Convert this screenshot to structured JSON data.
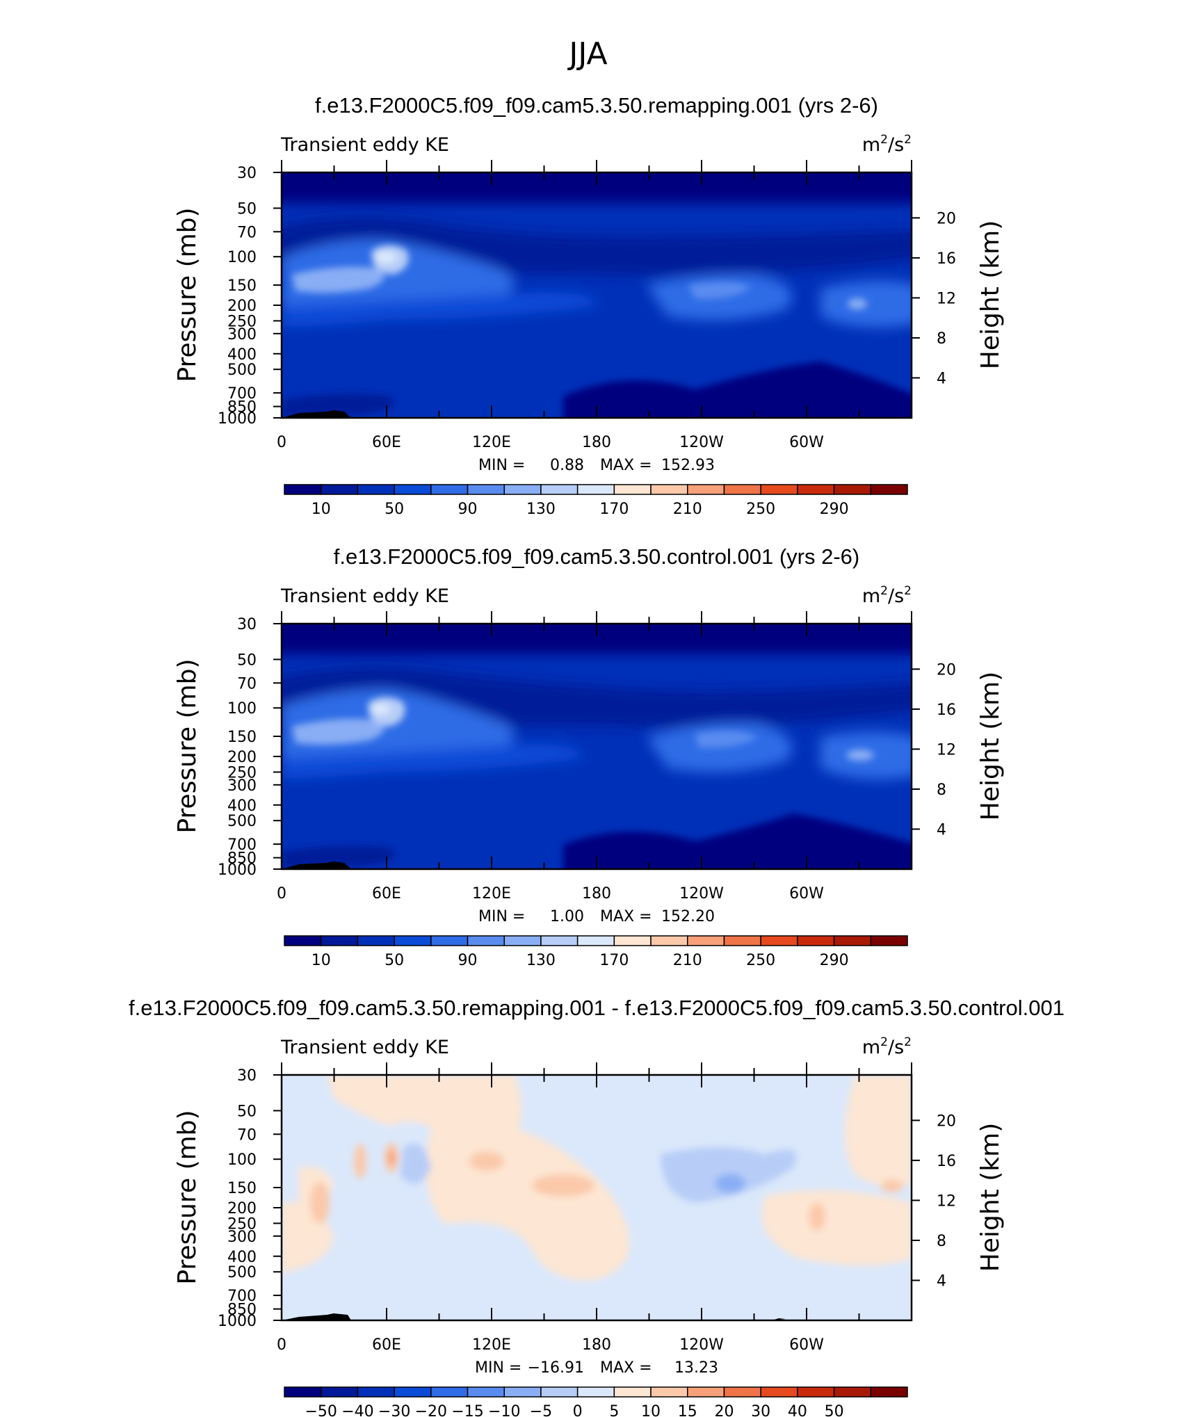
{
  "suptitle": "JJA",
  "units_base": "m",
  "units_exp1": "2",
  "units_mid": "/s",
  "units_exp2": "2",
  "stats_min_label": "MIN =",
  "stats_max_label": "MAX =",
  "y_label_left": "Pressure (mb)",
  "y_label_right": "Height (km)",
  "pressure_ticks": [
    "30",
    "50",
    "70",
    "100",
    "150",
    "200",
    "250",
    "300",
    "400",
    "500",
    "700",
    "850",
    "1000"
  ],
  "height_ticks": [
    "20",
    "16",
    "12",
    "8",
    "4"
  ],
  "x_tick_labels": [
    "0",
    "60E",
    "120E",
    "180",
    "120W",
    "60W"
  ],
  "chart_data": [
    {
      "type": "heatmap",
      "title": "f.e13.F2000C5.f09_f09.cam5.3.50.remapping.001 (yrs 2-6)",
      "subtitle": "Transient eddy KE",
      "xlabel": "",
      "ylabel": "Pressure (mb)",
      "ylabel_right": "Height (km)",
      "ylim": [
        1000,
        30
      ],
      "min": "0.88",
      "max": "152.93",
      "colorbar_labels": [
        "10",
        "50",
        "90",
        "130",
        "170",
        "210",
        "250",
        "290"
      ],
      "colors": [
        "#00007f",
        "#001a99",
        "#0030b8",
        "#0a4bd8",
        "#2f6ce6",
        "#5a8cf0",
        "#8aaef5",
        "#b7cdf7",
        "#dbe8fb",
        "#fde6d3",
        "#fbc9aa",
        "#f7a07a",
        "#ef7447",
        "#e64a1e",
        "#c92a0c",
        "#a81a05",
        "#7a0000"
      ],
      "levels": [
        5,
        10,
        30,
        50,
        70,
        90,
        110,
        130,
        150,
        170,
        190,
        210,
        230,
        250,
        270,
        290
      ],
      "grid": false
    },
    {
      "type": "heatmap",
      "title": "f.e13.F2000C5.f09_f09.cam5.3.50.control.001 (yrs 2-6)",
      "subtitle": "Transient eddy KE",
      "xlabel": "",
      "ylabel": "Pressure (mb)",
      "ylabel_right": "Height (km)",
      "ylim": [
        1000,
        30
      ],
      "min": "1.00",
      "max": "152.20",
      "colorbar_labels": [
        "10",
        "50",
        "90",
        "130",
        "170",
        "210",
        "250",
        "290"
      ],
      "colors": [
        "#00007f",
        "#001a99",
        "#0030b8",
        "#0a4bd8",
        "#2f6ce6",
        "#5a8cf0",
        "#8aaef5",
        "#b7cdf7",
        "#dbe8fb",
        "#fde6d3",
        "#fbc9aa",
        "#f7a07a",
        "#ef7447",
        "#e64a1e",
        "#c92a0c",
        "#a81a05",
        "#7a0000"
      ],
      "levels": [
        5,
        10,
        30,
        50,
        70,
        90,
        110,
        130,
        150,
        170,
        190,
        210,
        230,
        250,
        270,
        290
      ],
      "grid": false
    },
    {
      "type": "heatmap",
      "title": "f.e13.F2000C5.f09_f09.cam5.3.50.remapping.001 - f.e13.F2000C5.f09_f09.cam5.3.50.control.001",
      "subtitle": "Transient eddy KE",
      "xlabel": "",
      "ylabel": "Pressure (mb)",
      "ylabel_right": "Height (km)",
      "ylim": [
        1000,
        30
      ],
      "min": "−16.91",
      "max": "13.23",
      "colorbar_labels": [
        "−50",
        "−40",
        "−30",
        "−20",
        "−15",
        "−10",
        "−5",
        "0",
        "5",
        "10",
        "15",
        "20",
        "30",
        "40",
        "50"
      ],
      "colors": [
        "#00007f",
        "#001a99",
        "#0030b8",
        "#0a4bd8",
        "#2f6ce6",
        "#5a8cf0",
        "#8aaef5",
        "#b7cdf7",
        "#dbe8fb",
        "#fde6d3",
        "#fbc9aa",
        "#f7a07a",
        "#ef7447",
        "#e64a1e",
        "#c92a0c",
        "#a81a05",
        "#7a0000"
      ],
      "levels": [
        -60,
        -50,
        -40,
        -30,
        -20,
        -15,
        -10,
        -5,
        0,
        5,
        10,
        15,
        20,
        30,
        40,
        50
      ],
      "grid": false
    }
  ]
}
